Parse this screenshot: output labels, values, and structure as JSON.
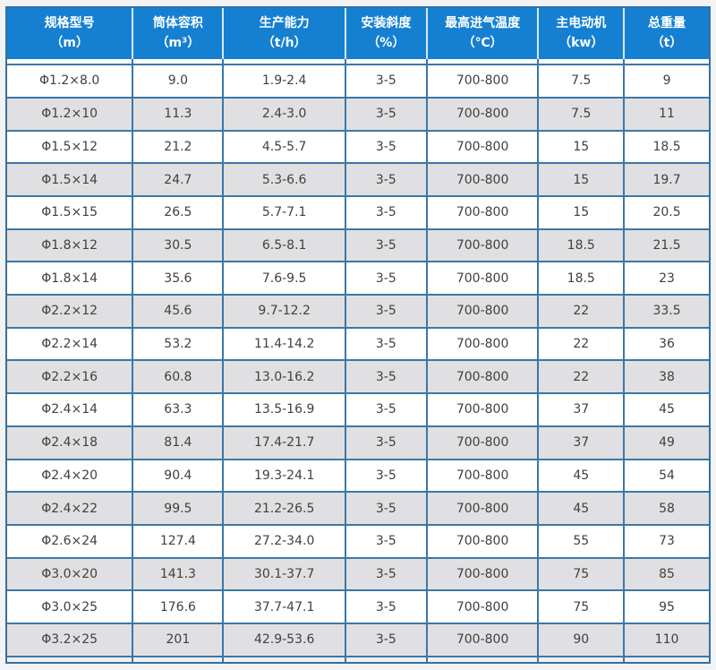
{
  "colors": {
    "header_bg": "#1580d2",
    "header_text": "#ffffff",
    "grid_border": "#3b77a8",
    "outer_border": "#35709f",
    "header_divider": "#d9e7f3",
    "row_white": "#ffffff",
    "row_gray": "#e0e0e2",
    "cell_text": "#404040",
    "page_bg": "#f2f3f5"
  },
  "chart_data": {
    "type": "table",
    "columns": [
      {
        "name": "规格型号",
        "unit": "（m）"
      },
      {
        "name": "筒体容积",
        "unit": "（m³）"
      },
      {
        "name": "生产能力",
        "unit": "（t/h）"
      },
      {
        "name": "安装斜度",
        "unit": "（%）"
      },
      {
        "name": "最高进气温度",
        "unit": "（℃）"
      },
      {
        "name": "主电动机",
        "unit": "（kw）"
      },
      {
        "name": "总重量",
        "unit": "（t）"
      }
    ],
    "rows": [
      [
        "Φ1.2×8.0",
        "9.0",
        "1.9-2.4",
        "3-5",
        "700-800",
        "7.5",
        "9"
      ],
      [
        "Φ1.2×10",
        "11.3",
        "2.4-3.0",
        "3-5",
        "700-800",
        "7.5",
        "11"
      ],
      [
        "Φ1.5×12",
        "21.2",
        "4.5-5.7",
        "3-5",
        "700-800",
        "15",
        "18.5"
      ],
      [
        "Φ1.5×14",
        "24.7",
        "5.3-6.6",
        "3-5",
        "700-800",
        "15",
        "19.7"
      ],
      [
        "Φ1.5×15",
        "26.5",
        "5.7-7.1",
        "3-5",
        "700-800",
        "15",
        "20.5"
      ],
      [
        "Φ1.8×12",
        "30.5",
        "6.5-8.1",
        "3-5",
        "700-800",
        "18.5",
        "21.5"
      ],
      [
        "Φ1.8×14",
        "35.6",
        "7.6-9.5",
        "3-5",
        "700-800",
        "18.5",
        "23"
      ],
      [
        "Φ2.2×12",
        "45.6",
        "9.7-12.2",
        "3-5",
        "700-800",
        "22",
        "33.5"
      ],
      [
        "Φ2.2×14",
        "53.2",
        "11.4-14.2",
        "3-5",
        "700-800",
        "22",
        "36"
      ],
      [
        "Φ2.2×16",
        "60.8",
        "13.0-16.2",
        "3-5",
        "700-800",
        "22",
        "38"
      ],
      [
        "Φ2.4×14",
        "63.3",
        "13.5-16.9",
        "3-5",
        "700-800",
        "37",
        "45"
      ],
      [
        "Φ2.4×18",
        "81.4",
        "17.4-21.7",
        "3-5",
        "700-800",
        "37",
        "49"
      ],
      [
        "Φ2.4×20",
        "90.4",
        "19.3-24.1",
        "3-5",
        "700-800",
        "45",
        "54"
      ],
      [
        "Φ2.4×22",
        "99.5",
        "21.2-26.5",
        "3-5",
        "700-800",
        "45",
        "58"
      ],
      [
        "Φ2.6×24",
        "127.4",
        "27.2-34.0",
        "3-5",
        "700-800",
        "55",
        "73"
      ],
      [
        "Φ3.0×20",
        "141.3",
        "30.1-37.7",
        "3-5",
        "700-800",
        "75",
        "85"
      ],
      [
        "Φ3.0×25",
        "176.6",
        "37.7-47.1",
        "3-5",
        "700-800",
        "75",
        "95"
      ],
      [
        "Φ3.2×25",
        "201",
        "42.9-53.6",
        "3-5",
        "700-800",
        "90",
        "110"
      ]
    ]
  }
}
